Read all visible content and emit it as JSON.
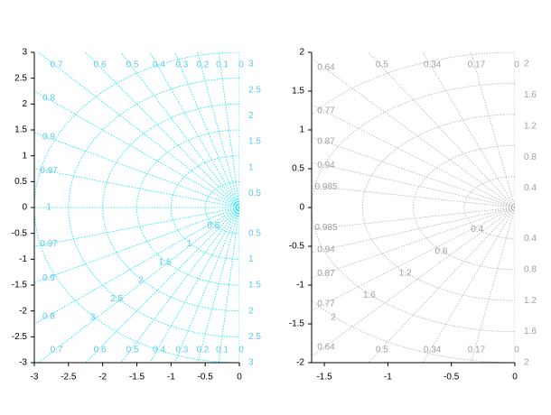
{
  "chart_data": [
    {
      "type": "sgrid",
      "color": "#00e8ff",
      "label_color": "#5cc8f0",
      "xlim": [
        -3,
        0
      ],
      "ylim": [
        -3,
        3
      ],
      "xticks": [
        -3,
        -2.5,
        -2,
        -1.5,
        -1,
        -0.5,
        0
      ],
      "yticks": [
        -3,
        -2.5,
        -2,
        -1.5,
        -1,
        -0.5,
        0,
        0.5,
        1,
        1.5,
        2,
        2.5,
        3
      ],
      "damping": [
        0,
        0.1,
        0.2,
        0.3,
        0.4,
        0.5,
        0.6,
        0.7,
        0.8,
        0.9,
        0.97,
        1
      ],
      "frequency": [
        0.5,
        1,
        1.5,
        2,
        2.5,
        3
      ]
    },
    {
      "type": "sgrid",
      "color": "#b4b4b4",
      "label_color": "#a0a0a0",
      "xlim": [
        -1.6,
        0
      ],
      "ylim": [
        -2,
        2
      ],
      "xticks": [
        -1.5,
        -1,
        -0.5,
        0
      ],
      "yticks": [
        -2,
        -1.5,
        -1,
        -0.5,
        0,
        0.5,
        1,
        1.5,
        2
      ],
      "damping": [
        0,
        0.17,
        0.34,
        0.5,
        0.64,
        0.77,
        0.87,
        0.94,
        0.985
      ],
      "frequency": [
        0.4,
        0.8,
        1.2,
        1.6,
        2
      ]
    }
  ]
}
